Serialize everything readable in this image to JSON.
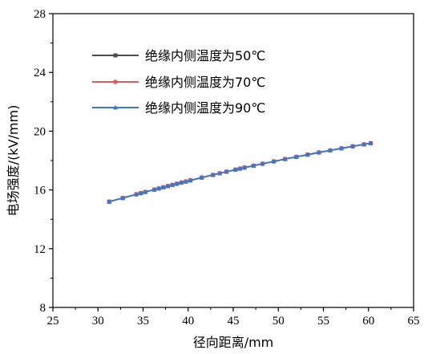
{
  "chart_data": {
    "type": "line",
    "xlabel": "径向距离/mm",
    "ylabel": "电场强度/(kV/mm)",
    "xlim": [
      25,
      65
    ],
    "ylim": [
      8,
      28
    ],
    "xticks": [
      25,
      30,
      35,
      40,
      45,
      50,
      55,
      60,
      65
    ],
    "yticks": [
      8,
      12,
      16,
      20,
      24,
      28
    ],
    "grid": false,
    "legend_position": "top-left",
    "series": [
      {
        "name": "绝缘内侧温度为50℃",
        "color": "#4d4d4d",
        "marker": "square",
        "x": [
          31.25,
          32.75,
          34.25,
          34.75,
          35.25,
          36.25,
          36.75,
          37.25,
          37.75,
          38.25,
          38.75,
          39.25,
          39.75,
          40.25,
          41.5,
          42.75,
          43.5,
          44.25,
          45.25,
          45.75,
          46.25,
          47.25,
          48.25,
          49.5,
          50.75,
          52,
          53.25,
          54.5,
          55.75,
          57,
          58.25,
          59.5,
          60.25
        ],
        "y": [
          15.2,
          15.45,
          15.7,
          15.78,
          15.86,
          16.02,
          16.1,
          16.18,
          16.26,
          16.34,
          16.42,
          16.5,
          16.57,
          16.65,
          16.84,
          17.02,
          17.13,
          17.24,
          17.38,
          17.45,
          17.52,
          17.65,
          17.78,
          17.94,
          18.1,
          18.25,
          18.4,
          18.55,
          18.69,
          18.83,
          18.97,
          19.1,
          19.18
        ]
      },
      {
        "name": "绝缘内侧温度为70℃",
        "color": "#e05a5a",
        "marker": "circle",
        "x": [
          31.25,
          32.75,
          34.25,
          34.75,
          35.25,
          36.25,
          36.75,
          37.25,
          37.75,
          38.25,
          38.75,
          39.25,
          39.75,
          40.25,
          41.5,
          42.75,
          43.5,
          44.25,
          45.25,
          45.75,
          46.25,
          47.25,
          48.25,
          49.5,
          50.75,
          52,
          53.25,
          54.5,
          55.75,
          57,
          58.25,
          59.5,
          60.25
        ],
        "y": [
          15.2,
          15.45,
          15.7,
          15.78,
          15.86,
          16.02,
          16.1,
          16.18,
          16.26,
          16.34,
          16.42,
          16.5,
          16.57,
          16.65,
          16.84,
          17.02,
          17.13,
          17.24,
          17.38,
          17.45,
          17.52,
          17.65,
          17.78,
          17.94,
          18.1,
          18.25,
          18.4,
          18.55,
          18.69,
          18.83,
          18.97,
          19.1,
          19.18
        ]
      },
      {
        "name": "绝缘内侧温度为90℃",
        "color": "#3a78d0",
        "marker": "triangle",
        "x": [
          31.25,
          32.75,
          34.25,
          34.75,
          35.25,
          36.25,
          36.75,
          37.25,
          37.75,
          38.25,
          38.75,
          39.25,
          39.75,
          40.25,
          41.5,
          42.75,
          43.5,
          44.25,
          45.25,
          45.75,
          46.25,
          47.25,
          48.25,
          49.5,
          50.75,
          52,
          53.25,
          54.5,
          55.75,
          57,
          58.25,
          59.5,
          60.25
        ],
        "y": [
          15.2,
          15.45,
          15.7,
          15.78,
          15.86,
          16.02,
          16.1,
          16.18,
          16.26,
          16.34,
          16.42,
          16.5,
          16.57,
          16.65,
          16.84,
          17.02,
          17.13,
          17.24,
          17.38,
          17.45,
          17.52,
          17.65,
          17.78,
          17.94,
          18.1,
          18.25,
          18.4,
          18.55,
          18.69,
          18.83,
          18.97,
          19.1,
          19.18
        ]
      }
    ]
  }
}
